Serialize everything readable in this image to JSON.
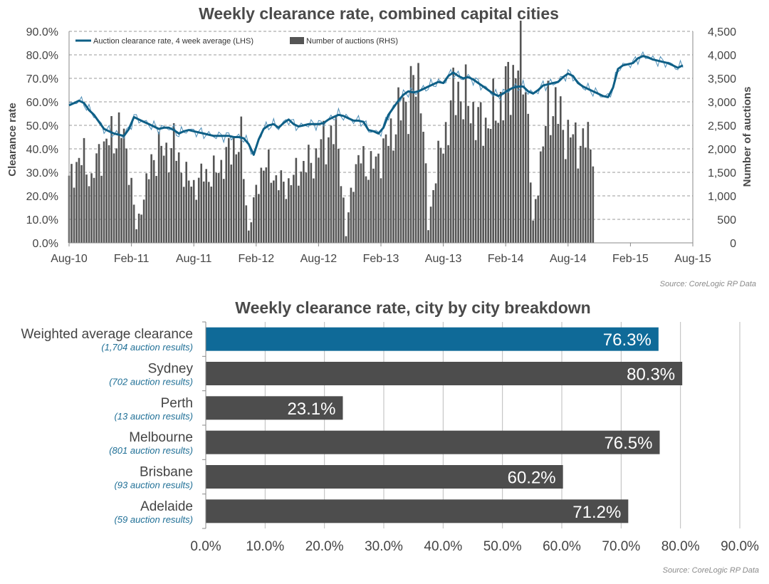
{
  "charts": {
    "top": {
      "title": "Weekly clearance rate, combined capital cities",
      "ylabel_left": "Clearance rate",
      "ylabel_right": "Number of auctions",
      "source": "Source: CoreLogic RP Data",
      "legend": [
        {
          "label": "Auction clearance rate, 4 week average (LHS)",
          "color": "#0e5f86"
        },
        {
          "label": "Number of auctions (RHS)",
          "color": "#555555"
        }
      ]
    },
    "bottom": {
      "title": "Weekly clearance rate, city by city breakdown",
      "source": "Source: CoreLogic RP Data"
    }
  },
  "chart_data": [
    {
      "type": "bar+line",
      "title": "Weekly clearance rate, combined capital cities",
      "x_ticks": [
        "Aug-10",
        "Feb-11",
        "Aug-11",
        "Feb-12",
        "Aug-12",
        "Feb-13",
        "Aug-13",
        "Feb-14",
        "Aug-14",
        "Feb-15",
        "Aug-15"
      ],
      "left_axis": {
        "label": "Clearance rate",
        "range": [
          0,
          90
        ],
        "ticks": [
          "0.0%",
          "10.0%",
          "20.0%",
          "30.0%",
          "40.0%",
          "50.0%",
          "60.0%",
          "70.0%",
          "80.0%",
          "90.0%"
        ]
      },
      "right_axis": {
        "label": "Number of auctions",
        "range": [
          0,
          4500
        ],
        "ticks": [
          "0",
          "500",
          "1,000",
          "1,500",
          "2,000",
          "2,500",
          "3,000",
          "3,500",
          "4,000",
          "4,500"
        ]
      },
      "grid": true,
      "legend_position": "top-left",
      "series": [
        {
          "name": "Auction clearance rate, 4 week average (LHS)",
          "axis": "left",
          "type": "line",
          "color": "#0e5f86",
          "points": [
            [
              0,
              58.5
            ],
            [
              2,
              59.5
            ],
            [
              4,
              60.5
            ],
            [
              6,
              59.5
            ],
            [
              8,
              56.5
            ],
            [
              10,
              54.5
            ],
            [
              12,
              51.5
            ],
            [
              14,
              48.5
            ],
            [
              16,
              47.5
            ],
            [
              18,
              46.5
            ],
            [
              20,
              46
            ],
            [
              22,
              45.5
            ],
            [
              24,
              48.5
            ],
            [
              26,
              53.5
            ],
            [
              28,
              52.5
            ],
            [
              30,
              51.5
            ],
            [
              32,
              50.5
            ],
            [
              34,
              49.5
            ],
            [
              36,
              48.5
            ],
            [
              38,
              49
            ],
            [
              40,
              49
            ],
            [
              42,
              48
            ],
            [
              44,
              46.5
            ],
            [
              46,
              47.5
            ],
            [
              48,
              48
            ],
            [
              50,
              47.5
            ],
            [
              52,
              47
            ],
            [
              54,
              46.5
            ],
            [
              56,
              46
            ],
            [
              58,
              45.5
            ],
            [
              60,
              45.5
            ],
            [
              62,
              45.5
            ],
            [
              64,
              45.5
            ],
            [
              66,
              45
            ],
            [
              68,
              45
            ],
            [
              70,
              44.5
            ],
            [
              72,
              42
            ],
            [
              74,
              37.5
            ],
            [
              76,
              44
            ],
            [
              78,
              48.5
            ],
            [
              80,
              50
            ],
            [
              82,
              50.5
            ],
            [
              84,
              49
            ],
            [
              86,
              51
            ],
            [
              88,
              52.5
            ],
            [
              90,
              50.5
            ],
            [
              92,
              49.5
            ],
            [
              94,
              50
            ],
            [
              96,
              50.5
            ],
            [
              98,
              50.5
            ],
            [
              100,
              50.5
            ],
            [
              102,
              51
            ],
            [
              104,
              52.5
            ],
            [
              106,
              53.5
            ],
            [
              108,
              54.5
            ],
            [
              110,
              54
            ],
            [
              112,
              53
            ],
            [
              114,
              52
            ],
            [
              116,
              52
            ],
            [
              118,
              51.5
            ],
            [
              120,
              48
            ],
            [
              122,
              47.5
            ],
            [
              124,
              46.5
            ],
            [
              126,
              49
            ],
            [
              128,
              54.5
            ],
            [
              130,
              57.5
            ],
            [
              132,
              60.5
            ],
            [
              134,
              63
            ],
            [
              136,
              64.5
            ],
            [
              138,
              64
            ],
            [
              140,
              64.5
            ],
            [
              142,
              65.5
            ],
            [
              144,
              66.5
            ],
            [
              146,
              67.5
            ],
            [
              148,
              68.5
            ],
            [
              150,
              68
            ],
            [
              152,
              71
            ],
            [
              154,
              72.5
            ],
            [
              156,
              71
            ],
            [
              158,
              70
            ],
            [
              160,
              70.5
            ],
            [
              162,
              69.5
            ],
            [
              164,
              68
            ],
            [
              166,
              66.5
            ],
            [
              168,
              65
            ],
            [
              170,
              63.5
            ],
            [
              172,
              62.5
            ],
            [
              174,
              63.5
            ],
            [
              176,
              65
            ],
            [
              178,
              66
            ],
            [
              180,
              66.5
            ],
            [
              182,
              66.5
            ],
            [
              184,
              64.5
            ],
            [
              186,
              63.5
            ],
            [
              188,
              65
            ],
            [
              190,
              67
            ],
            [
              192,
              67.5
            ],
            [
              194,
              68
            ],
            [
              196,
              68.5
            ],
            [
              198,
              70.5
            ],
            [
              200,
              72
            ],
            [
              202,
              71
            ],
            [
              204,
              68
            ],
            [
              206,
              66.5
            ],
            [
              208,
              65.5
            ],
            [
              210,
              64.5
            ],
            [
              212,
              63.5
            ],
            [
              214,
              62.5
            ],
            [
              216,
              62
            ],
            [
              218,
              66
            ],
            [
              220,
              74
            ],
            [
              222,
              75.5
            ],
            [
              224,
              76
            ],
            [
              226,
              76.5
            ],
            [
              228,
              78.5
            ],
            [
              230,
              79.5
            ],
            [
              232,
              79
            ],
            [
              234,
              78
            ],
            [
              236,
              77.5
            ],
            [
              238,
              77
            ],
            [
              240,
              76.5
            ],
            [
              242,
              75.5
            ],
            [
              244,
              74.5
            ],
            [
              246,
              75.5
            ]
          ]
        },
        {
          "name": "Number of auctions (RHS)",
          "axis": "right",
          "type": "bar",
          "color": "#555555",
          "points": [
            [
              0,
              1300
            ],
            [
              3,
              1700
            ],
            [
              6,
              1800
            ],
            [
              9,
              1300
            ],
            [
              12,
              1900
            ],
            [
              15,
              2100
            ],
            [
              18,
              2300
            ],
            [
              21,
              2400
            ],
            [
              24,
              1700
            ],
            [
              27,
              300
            ],
            [
              30,
              1000
            ],
            [
              33,
              1700
            ],
            [
              36,
              2000
            ],
            [
              39,
              1900
            ],
            [
              42,
              2100
            ],
            [
              45,
              1600
            ],
            [
              48,
              1300
            ],
            [
              51,
              1200
            ],
            [
              54,
              1500
            ],
            [
              57,
              1400
            ],
            [
              60,
              1600
            ],
            [
              63,
              1800
            ],
            [
              66,
              2100
            ],
            [
              69,
              2100
            ],
            [
              72,
              250
            ],
            [
              75,
              1100
            ],
            [
              78,
              1700
            ],
            [
              81,
              1500
            ],
            [
              84,
              1300
            ],
            [
              87,
              1200
            ],
            [
              90,
              1400
            ],
            [
              93,
              1600
            ],
            [
              96,
              1700
            ],
            [
              99,
              1800
            ],
            [
              102,
              2200
            ],
            [
              105,
              2300
            ],
            [
              108,
              2200
            ],
            [
              111,
              150
            ],
            [
              114,
              1500
            ],
            [
              117,
              1800
            ],
            [
              120,
              1600
            ],
            [
              123,
              1700
            ],
            [
              126,
              2000
            ],
            [
              129,
              2300
            ],
            [
              132,
              2700
            ],
            [
              135,
              3000
            ],
            [
              138,
              3300
            ],
            [
              141,
              3500
            ],
            [
              144,
              300
            ],
            [
              147,
              1600
            ],
            [
              150,
              2100
            ],
            [
              153,
              2900
            ],
            [
              156,
              3300
            ],
            [
              159,
              3000
            ],
            [
              162,
              2800
            ],
            [
              165,
              2500
            ],
            [
              168,
              2600
            ],
            [
              171,
              2800
            ],
            [
              174,
              3100
            ],
            [
              177,
              3500
            ],
            [
              180,
              3800
            ],
            [
              183,
              3600
            ],
            [
              186,
              400
            ],
            [
              189,
              1800
            ],
            [
              192,
              2800
            ],
            [
              195,
              3000
            ],
            [
              198,
              2400
            ],
            [
              201,
              2300
            ],
            [
              204,
              2100
            ],
            [
              207,
              2200
            ],
            [
              210,
              2100
            ]
          ]
        }
      ]
    },
    {
      "type": "bar",
      "orientation": "horizontal",
      "title": "Weekly clearance rate, city by city breakdown",
      "categories": [
        "Weighted average clearance",
        "Sydney",
        "Perth",
        "Melbourne",
        "Brisbane",
        "Adelaide"
      ],
      "sublabels": [
        "(1,704 auction results)",
        "(702 auction results)",
        "(13 auction results)",
        "(801 auction results)",
        "(93 auction results)",
        "(59 auction results)"
      ],
      "values": [
        76.3,
        80.3,
        23.1,
        76.5,
        60.2,
        71.2
      ],
      "value_labels": [
        "76.3%",
        "80.3%",
        "23.1%",
        "76.5%",
        "60.2%",
        "71.2%"
      ],
      "colors": [
        "#0f6a98",
        "#4d4d4d",
        "#4d4d4d",
        "#4d4d4d",
        "#4d4d4d",
        "#4d4d4d"
      ],
      "xlim": [
        0,
        90
      ],
      "x_ticks": [
        "0.0%",
        "10.0%",
        "20.0%",
        "30.0%",
        "40.0%",
        "50.0%",
        "60.0%",
        "70.0%",
        "80.0%",
        "90.0%"
      ],
      "grid": true
    }
  ]
}
